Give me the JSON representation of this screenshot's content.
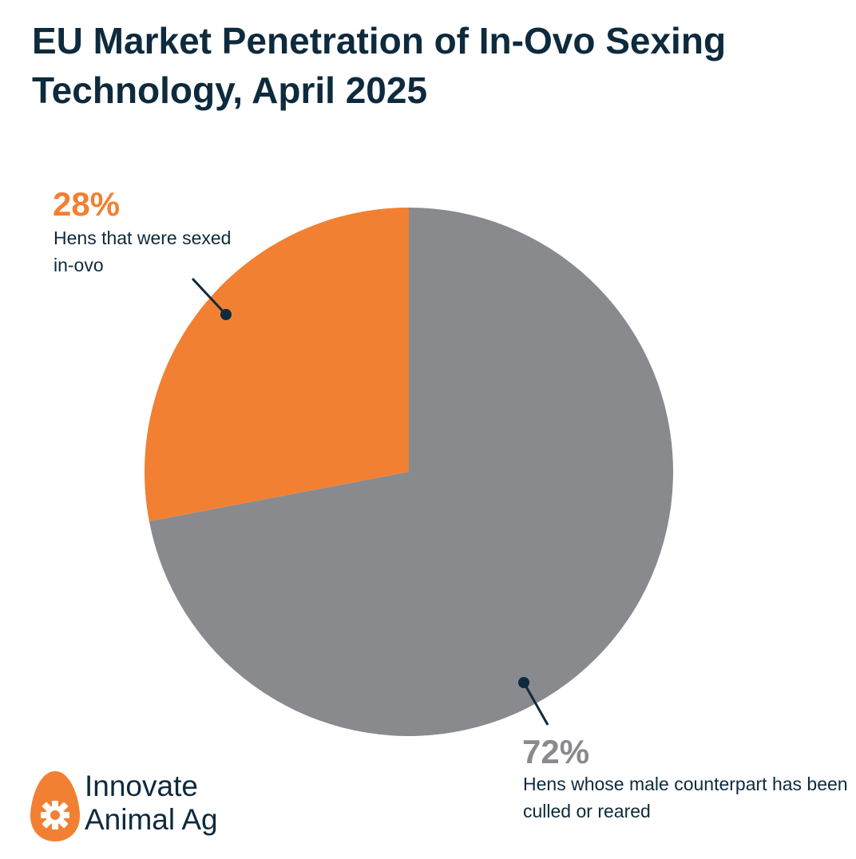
{
  "chart_data": {
    "type": "pie",
    "title": "EU Market Penetration of In-Ovo Sexing Technology, April 2025",
    "slices": [
      {
        "value": 28,
        "label_value": "28%",
        "label": "Hens that were sexed in-ovo",
        "color": "#f28033"
      },
      {
        "value": 72,
        "label_value": "72%",
        "label": "Hens whose male counterpart has been culled or reared",
        "color": "#898a8e"
      }
    ],
    "start_angle_deg": 0,
    "direction": "counterclockwise-from-top-for-first-slice"
  },
  "branding": {
    "logo_line1": "Innovate",
    "logo_line2": "Animal Ag",
    "logo_icon": "egg-gear-icon",
    "logo_color": "#f28033"
  },
  "colors": {
    "title": "#0e2a3d",
    "leader": "#0e2a3d"
  }
}
